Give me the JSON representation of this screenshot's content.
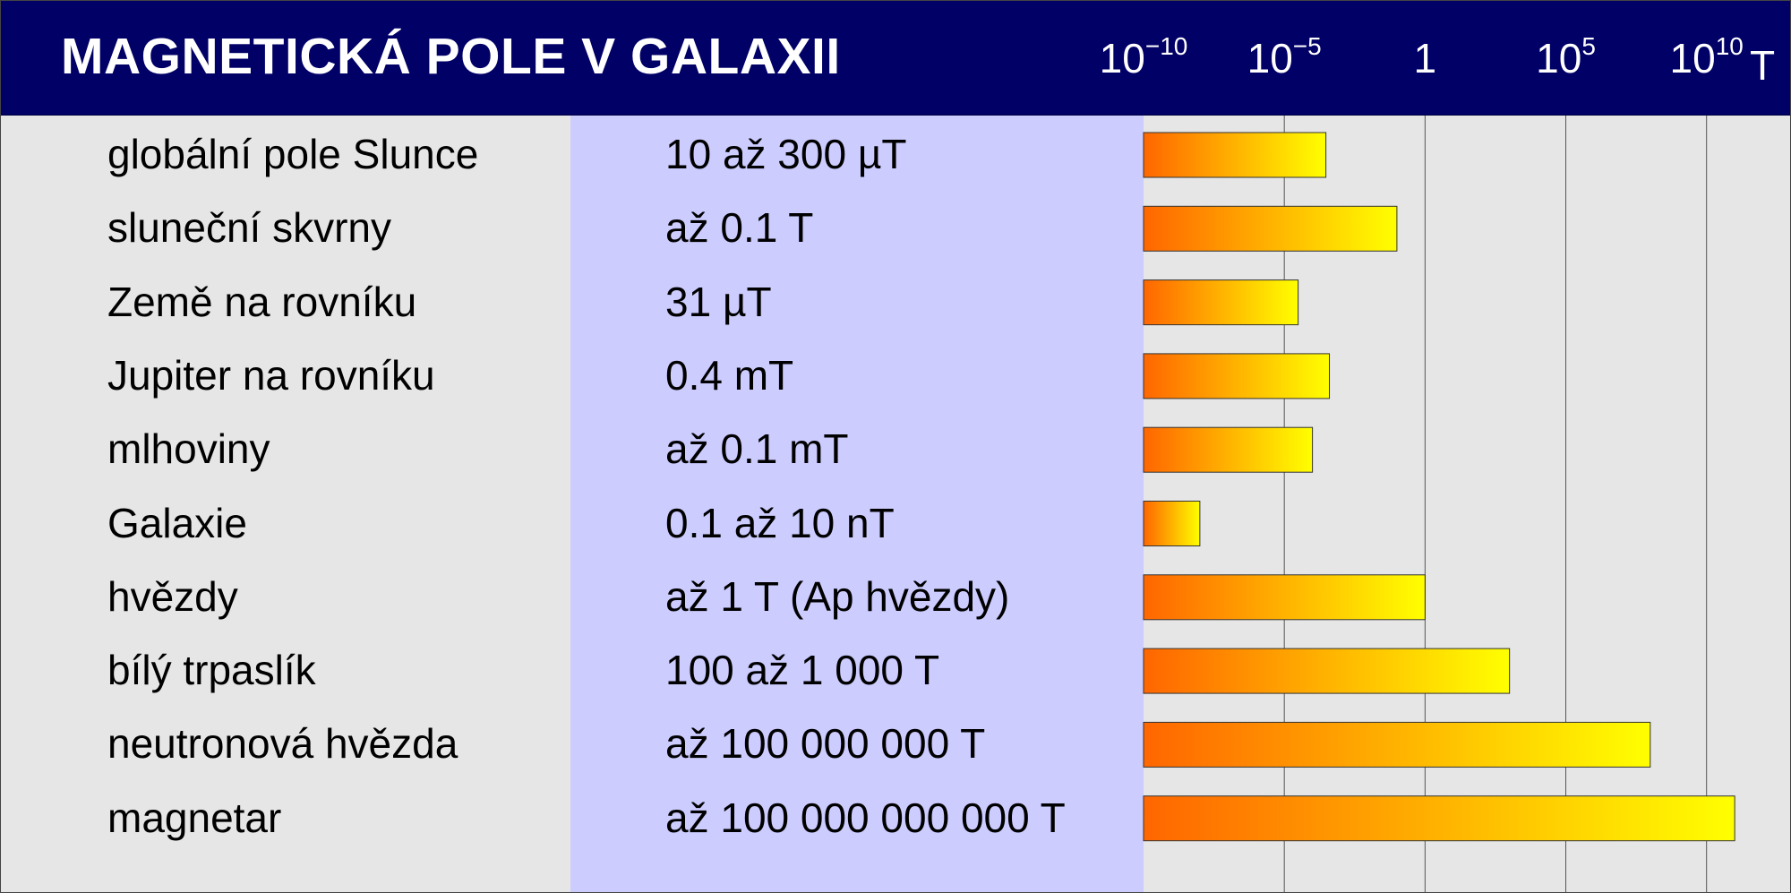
{
  "header": {
    "title": "MAGNETICKÁ POLE V GALAXII"
  },
  "chart_data": {
    "type": "bar",
    "orientation": "horizontal",
    "x_scale": "log",
    "x_unit": "T",
    "xlim": [
      1e-10,
      10000000000000.0
    ],
    "x_ticks": [
      {
        "value": 1e-10,
        "base": "10",
        "exp": "−10"
      },
      {
        "value": 1e-05,
        "base": "10",
        "exp": "−5"
      },
      {
        "value": 1,
        "base": "1",
        "exp": ""
      },
      {
        "value": 100000.0,
        "base": "10",
        "exp": "5"
      },
      {
        "value": 10000000000.0,
        "base": "10",
        "exp": "10"
      }
    ],
    "grid": true,
    "rows": [
      {
        "label": "globální pole Slunce",
        "value_text": "10 až 300 µT",
        "value": 0.0003
      },
      {
        "label": "sluneční skvrny",
        "value_text": "až 0.1 T",
        "value": 0.1
      },
      {
        "label": "Země na rovníku",
        "value_text": "31 µT",
        "value": 3.1e-05
      },
      {
        "label": "Jupiter na rovníku",
        "value_text": "0.4 mT",
        "value": 0.0004
      },
      {
        "label": "mlhoviny",
        "value_text": "až 0.1 mT",
        "value": 0.0001
      },
      {
        "label": "Galaxie",
        "value_text": "0.1 až 10 nT",
        "value": 1e-08
      },
      {
        "label": "hvězdy",
        "value_text": "až 1 T (Ap hvězdy)",
        "value": 1
      },
      {
        "label": "bílý trpaslík",
        "value_text": "100 až 1 000 T",
        "value": 1000
      },
      {
        "label": "neutronová hvězda",
        "value_text": "až 100 000 000 T",
        "value": 100000000
      },
      {
        "label": "magnetar",
        "value_text": "až 100 000 000 000 T",
        "value": 100000000000
      }
    ],
    "bar_gradient": [
      "#ff6600",
      "#ffff00"
    ]
  }
}
